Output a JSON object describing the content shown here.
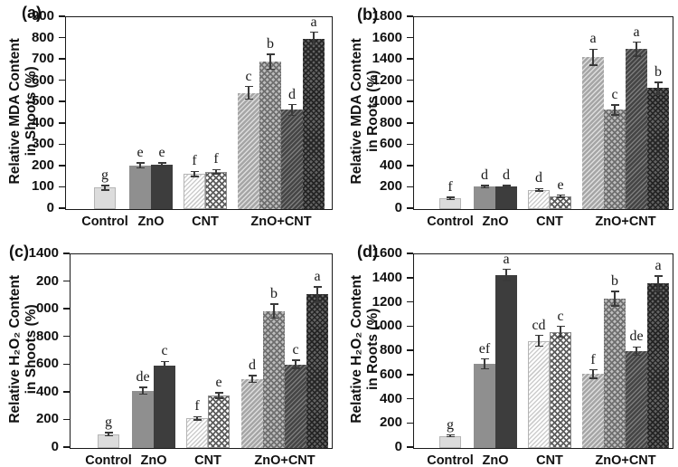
{
  "colors": {
    "axis": "#1a1a1a",
    "error_bar": "#3a3a3a",
    "bar_solid_light": "#dcdcdc",
    "bar_solid_medium": "#8f8f8f",
    "bar_solid_dark": "#3d3d3d"
  },
  "chart_data": [
    {
      "type": "bar",
      "panel_label": "(a)",
      "ylabel_line1": "Relative MDA Content",
      "ylabel_line2": "in Shoots (%)",
      "ylim": [
        0,
        900
      ],
      "ytick_labels": [
        "900",
        "800",
        "700",
        "600",
        "500",
        "400",
        "300",
        "200",
        "100",
        "0"
      ],
      "grid": false,
      "legend": "none",
      "categories": [
        "Control",
        "ZnO",
        "CNT",
        "ZnO+CNT"
      ],
      "groups": [
        {
          "category": "Control",
          "bars": [
            {
              "value": 100,
              "error": 10,
              "letter": "g",
              "pattern": "solid-light"
            }
          ]
        },
        {
          "category": "ZnO",
          "bars": [
            {
              "value": 205,
              "error": 12,
              "letter": "e",
              "pattern": "solid-medium"
            },
            {
              "value": 207,
              "error": 10,
              "letter": "e",
              "pattern": "solid-dark"
            }
          ]
        },
        {
          "category": "CNT",
          "bars": [
            {
              "value": 165,
              "error": 12,
              "letter": "f",
              "pattern": "diag-light"
            },
            {
              "value": 175,
              "error": 10,
              "letter": "f",
              "pattern": "cross-white"
            }
          ]
        },
        {
          "category": "ZnO+CNT",
          "bars": [
            {
              "value": 545,
              "error": 30,
              "letter": "c",
              "pattern": "diag-medium"
            },
            {
              "value": 690,
              "error": 35,
              "letter": "b",
              "pattern": "cross-light"
            },
            {
              "value": 465,
              "error": 25,
              "letter": "d",
              "pattern": "diag-dark"
            },
            {
              "value": 800,
              "error": 30,
              "letter": "a",
              "pattern": "cross-dark"
            }
          ]
        }
      ]
    },
    {
      "type": "bar",
      "panel_label": "(b)",
      "ylabel_line1": "Relative MDA Content",
      "ylabel_line2": "in Roots (%)",
      "ylim": [
        0,
        1800
      ],
      "ytick_labels": [
        "1800",
        "1600",
        "1400",
        "1200",
        "1000",
        "800",
        "600",
        "400",
        "200",
        "0"
      ],
      "grid": false,
      "legend": "none",
      "categories": [
        "Control",
        "ZnO",
        "CNT",
        "ZnO+CNT"
      ],
      "groups": [
        {
          "category": "Control",
          "bars": [
            {
              "value": 100,
              "error": 12,
              "letter": "f",
              "pattern": "solid-light"
            }
          ]
        },
        {
          "category": "ZnO",
          "bars": [
            {
              "value": 210,
              "error": 12,
              "letter": "d",
              "pattern": "solid-medium"
            },
            {
              "value": 210,
              "error": 10,
              "letter": "d",
              "pattern": "solid-dark"
            }
          ]
        },
        {
          "category": "CNT",
          "bars": [
            {
              "value": 180,
              "error": 12,
              "letter": "d",
              "pattern": "diag-light"
            },
            {
              "value": 120,
              "error": 10,
              "letter": "e",
              "pattern": "cross-white"
            }
          ]
        },
        {
          "category": "ZnO+CNT",
          "bars": [
            {
              "value": 1425,
              "error": 75,
              "letter": "a",
              "pattern": "diag-medium"
            },
            {
              "value": 930,
              "error": 45,
              "letter": "c",
              "pattern": "cross-light"
            },
            {
              "value": 1500,
              "error": 65,
              "letter": "a",
              "pattern": "diag-dark"
            },
            {
              "value": 1135,
              "error": 55,
              "letter": "b",
              "pattern": "cross-dark"
            }
          ]
        }
      ]
    },
    {
      "type": "bar",
      "panel_label": "(c)",
      "ylabel_line1": "Relative H₂O₂ Content",
      "ylabel_line2": "in Shoots (%)",
      "ylim": [
        0,
        1400
      ],
      "ytick_labels": [
        "1400",
        "200",
        "000",
        "800",
        "600",
        "400",
        "200",
        "0"
      ],
      "grid": false,
      "legend": "none",
      "categories": [
        "Control",
        "ZnO",
        "CNT",
        "ZnO+CNT"
      ],
      "groups": [
        {
          "category": "Control",
          "bars": [
            {
              "value": 100,
              "error": 10,
              "letter": "g",
              "pattern": "solid-light"
            }
          ]
        },
        {
          "category": "ZnO",
          "bars": [
            {
              "value": 415,
              "error": 25,
              "letter": "de",
              "pattern": "solid-medium"
            },
            {
              "value": 595,
              "error": 30,
              "letter": "c",
              "pattern": "solid-dark"
            }
          ]
        },
        {
          "category": "CNT",
          "bars": [
            {
              "value": 215,
              "error": 12,
              "letter": "f",
              "pattern": "diag-light"
            },
            {
              "value": 380,
              "error": 20,
              "letter": "e",
              "pattern": "cross-white"
            }
          ]
        },
        {
          "category": "ZnO+CNT",
          "bars": [
            {
              "value": 500,
              "error": 25,
              "letter": "d",
              "pattern": "diag-medium"
            },
            {
              "value": 990,
              "error": 50,
              "letter": "b",
              "pattern": "cross-light"
            },
            {
              "value": 605,
              "error": 30,
              "letter": "c",
              "pattern": "diag-dark"
            },
            {
              "value": 1110,
              "error": 55,
              "letter": "a",
              "pattern": "cross-dark"
            }
          ]
        }
      ]
    },
    {
      "type": "bar",
      "panel_label": "(d)",
      "ylabel_line1": "Relative H₂O₂ Content",
      "ylabel_line2": "in Roots (%)",
      "ylim": [
        0,
        1600
      ],
      "ytick_labels": [
        "1600",
        "1400",
        "1200",
        "1000",
        "800",
        "600",
        "400",
        "200",
        "0"
      ],
      "grid": false,
      "legend": "none",
      "categories": [
        "Control",
        "ZnO",
        "CNT",
        "ZnO+CNT"
      ],
      "groups": [
        {
          "category": "Control",
          "bars": [
            {
              "value": 100,
              "error": 8,
              "letter": "g",
              "pattern": "solid-light"
            }
          ]
        },
        {
          "category": "ZnO",
          "bars": [
            {
              "value": 695,
              "error": 40,
              "letter": "ef",
              "pattern": "solid-medium"
            },
            {
              "value": 1430,
              "error": 45,
              "letter": "a",
              "pattern": "solid-dark"
            }
          ]
        },
        {
          "category": "CNT",
          "bars": [
            {
              "value": 885,
              "error": 45,
              "letter": "cd",
              "pattern": "diag-light"
            },
            {
              "value": 960,
              "error": 45,
              "letter": "c",
              "pattern": "cross-white"
            }
          ]
        },
        {
          "category": "ZnO+CNT",
          "bars": [
            {
              "value": 610,
              "error": 35,
              "letter": "f",
              "pattern": "diag-medium"
            },
            {
              "value": 1235,
              "error": 60,
              "letter": "b",
              "pattern": "cross-light"
            },
            {
              "value": 800,
              "error": 35,
              "letter": "de",
              "pattern": "diag-dark"
            },
            {
              "value": 1360,
              "error": 60,
              "letter": "a",
              "pattern": "cross-dark"
            }
          ]
        }
      ]
    }
  ]
}
